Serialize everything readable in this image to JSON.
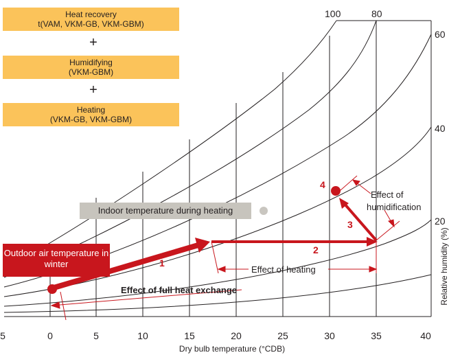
{
  "legend_boxes": [
    {
      "title": "Heat recovery",
      "subtitle": "t(VAM, VKM-GB, VKM-GBM)"
    },
    {
      "title": "Humidifying",
      "subtitle": "(VKM-GBM)"
    },
    {
      "title": "Heating",
      "subtitle": "(VKM-GB, VKM-GBM)"
    }
  ],
  "plus_symbol": "+",
  "labels": {
    "indoor": "Indoor temperature during heating",
    "outdoor_line1": "Outdoor air",
    "outdoor_line2": "temperature in winter",
    "effect_heating": "Effect of heating",
    "effect_humid_1": "Effect of",
    "effect_humid_2": "humidification",
    "effect_full": "Effect of full heat exchange",
    "x_axis": "Dry bulb temperature (°CDB)",
    "y_axis": "Relative humidity (%)"
  },
  "steps": [
    "1",
    "2",
    "3",
    "4"
  ],
  "x_ticks": [
    "5",
    "0",
    "5",
    "10",
    "15",
    "20",
    "25",
    "30",
    "35",
    "40"
  ],
  "rh_top_labels": [
    "100",
    "80"
  ],
  "rh_right_labels": [
    "60",
    "40",
    "20"
  ],
  "colors": {
    "box": "#fbc35a",
    "red": "#c8161d",
    "grey": "#c7c4bd",
    "dot_grey": "#c9c6c0"
  }
}
